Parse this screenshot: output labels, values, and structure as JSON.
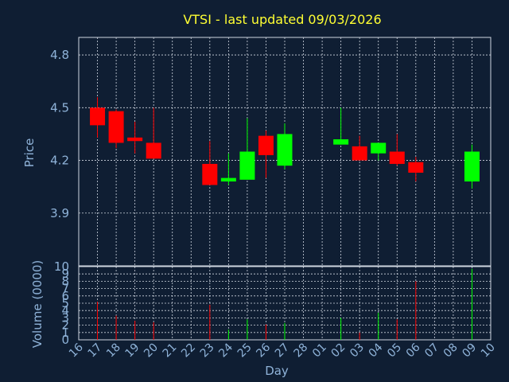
{
  "chart_data": {
    "type": "candlestick",
    "title": "VTSI - last updated 09/03/2026",
    "xlabel": "Day",
    "ylabel": "Price",
    "volume_label": "Volume (0000)",
    "ylim": [
      3.6,
      4.9
    ],
    "yticks": [
      3.9,
      4.2,
      4.5,
      4.8
    ],
    "vol_ylim": [
      0,
      10
    ],
    "vol_yticks": [
      0,
      1,
      2,
      3,
      4,
      5,
      6,
      7,
      8,
      9,
      10
    ],
    "grid": true,
    "categories": [
      "16",
      "17",
      "18",
      "19",
      "20",
      "21",
      "22",
      "23",
      "24",
      "25",
      "26",
      "27",
      "28",
      "01",
      "02",
      "03",
      "04",
      "05",
      "06",
      "07",
      "08",
      "09",
      "10"
    ],
    "candles": [
      {
        "day": "17",
        "open": 4.5,
        "high": 4.56,
        "low": 4.33,
        "close": 4.4,
        "volume": 5.2
      },
      {
        "day": "18",
        "open": 4.48,
        "high": 4.49,
        "low": 4.27,
        "close": 4.3,
        "volume": 3.3
      },
      {
        "day": "19",
        "open": 4.33,
        "high": 4.42,
        "low": 4.24,
        "close": 4.31,
        "volume": 2.6
      },
      {
        "day": "20",
        "open": 4.3,
        "high": 4.5,
        "low": 4.21,
        "close": 4.21,
        "volume": 2.4
      },
      {
        "day": "23",
        "open": 4.18,
        "high": 4.31,
        "low": 4.06,
        "close": 4.06,
        "volume": 4.8
      },
      {
        "day": "24",
        "open": 4.08,
        "high": 4.24,
        "low": 4.06,
        "close": 4.1,
        "volume": 1.4
      },
      {
        "day": "25",
        "open": 4.09,
        "high": 4.44,
        "low": 4.09,
        "close": 4.25,
        "volume": 2.8
      },
      {
        "day": "26",
        "open": 4.34,
        "high": 4.37,
        "low": 4.1,
        "close": 4.23,
        "volume": 2.1
      },
      {
        "day": "27",
        "open": 4.17,
        "high": 4.41,
        "low": 4.15,
        "close": 4.35,
        "volume": 2.3
      },
      {
        "day": "02",
        "open": 4.29,
        "high": 4.5,
        "low": 4.29,
        "close": 4.32,
        "volume": 3.0
      },
      {
        "day": "03",
        "open": 4.28,
        "high": 4.34,
        "low": 4.2,
        "close": 4.2,
        "volume": 1.0
      },
      {
        "day": "04",
        "open": 4.24,
        "high": 4.3,
        "low": 4.2,
        "close": 4.3,
        "volume": 3.7
      },
      {
        "day": "05",
        "open": 4.25,
        "high": 4.35,
        "low": 4.17,
        "close": 4.18,
        "volume": 2.8
      },
      {
        "day": "06",
        "open": 4.19,
        "high": 4.22,
        "low": 4.08,
        "close": 4.13,
        "volume": 8.0
      },
      {
        "day": "09",
        "open": 4.08,
        "high": 4.29,
        "low": 4.04,
        "close": 4.25,
        "volume": 9.7
      }
    ],
    "colors": {
      "background": "#0f1e33",
      "grid": "#cfd6e0",
      "axis_text": "#8fb3d9",
      "title": "#ffff33",
      "up": "#00ff00",
      "down": "#ff0000"
    }
  }
}
